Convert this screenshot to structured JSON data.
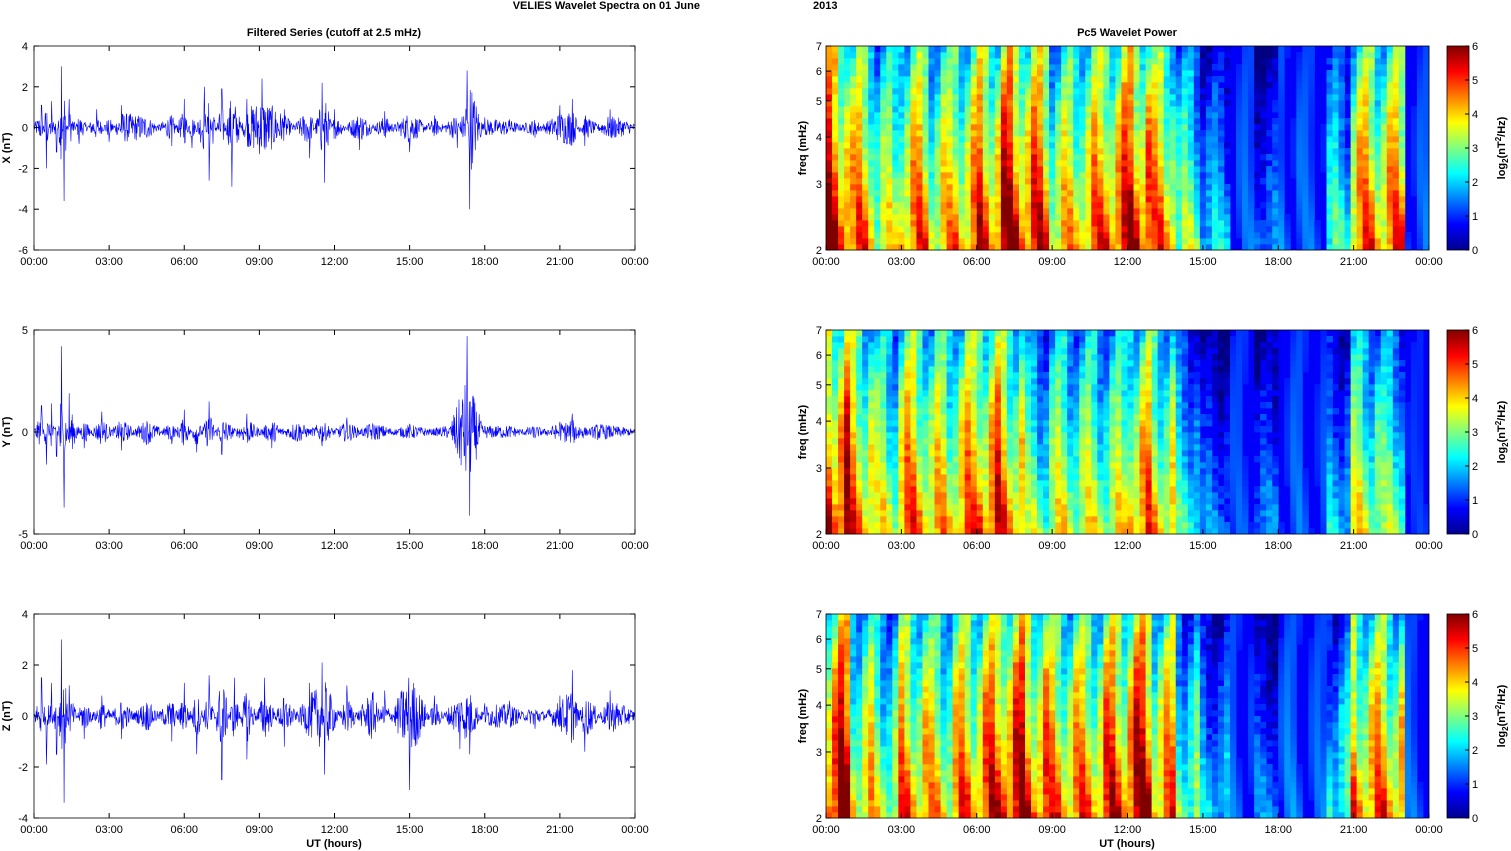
{
  "figure": {
    "suptitle_left": "VELIES Wavelet Spectra on 01 June",
    "suptitle_right": "2013",
    "left_title": "Filtered Series (cutoff at 2.5 mHz)",
    "right_title": "Pc5 Wavelet Power",
    "x_axis_label": "UT (hours)",
    "freq_label": "freq (mHz)",
    "colorbar_label": "log2(nT2/Hz)"
  },
  "colors": {
    "trace": "#0000ff",
    "axis": "#000000"
  },
  "chart_data": [
    {
      "type": "line",
      "panel": "X",
      "title": "Filtered Series (cutoff at 2.5 mHz)",
      "ylabel": "X (nT)",
      "xlabel": "",
      "xlim": [
        "00:00",
        "24:00"
      ],
      "ylim": [
        -6,
        4
      ],
      "xticks": [
        "00:00",
        "03:00",
        "06:00",
        "09:00",
        "12:00",
        "15:00",
        "18:00",
        "21:00",
        "00:00"
      ],
      "yticks": [
        -6,
        -4,
        -2,
        0,
        2,
        4
      ],
      "series": [
        {
          "hours": [
            0,
            0.3,
            0.5,
            0.7,
            0.9,
            1.1,
            1.2,
            1.4,
            1.8,
            2.5,
            3.0,
            3.5,
            4.5,
            5.5,
            6.0,
            6.3,
            6.8,
            7.0,
            7.5,
            7.9,
            8.5,
            9.1,
            10.0,
            11.0,
            11.5,
            11.6,
            12.0,
            13.0,
            14.0,
            15.0,
            16.0,
            16.9,
            17.3,
            17.4,
            18.0,
            19.0,
            20.0,
            21.0,
            21.5,
            22.0,
            23.0,
            24.0
          ],
          "values": [
            0.1,
            1.1,
            -2.0,
            1.3,
            -1.2,
            3.0,
            -3.6,
            1.4,
            -0.8,
            0.9,
            -0.7,
            1.1,
            0.8,
            -0.9,
            1.4,
            -1.0,
            2.0,
            -2.6,
            1.9,
            -2.9,
            1.4,
            2.4,
            0.9,
            -1.5,
            2.2,
            -2.7,
            0.9,
            -1.1,
            0.8,
            -1.2,
            0.6,
            -1.0,
            2.8,
            -4.0,
            0.5,
            0.4,
            -0.5,
            1.1,
            1.4,
            -0.9,
            0.9,
            0.1
          ]
        }
      ]
    },
    {
      "type": "line",
      "panel": "Y",
      "ylabel": "Y (nT)",
      "xlabel": "",
      "xlim": [
        "00:00",
        "24:00"
      ],
      "ylim": [
        -5,
        5
      ],
      "xticks": [
        "00:00",
        "03:00",
        "06:00",
        "09:00",
        "12:00",
        "15:00",
        "18:00",
        "21:00",
        "00:00"
      ],
      "yticks": [
        -5,
        0,
        5
      ],
      "series": [
        {
          "hours": [
            0,
            0.3,
            0.5,
            0.7,
            0.9,
            1.1,
            1.2,
            1.4,
            2.0,
            2.7,
            3.5,
            4.5,
            5.5,
            6.0,
            6.5,
            7.0,
            7.5,
            8.5,
            9.5,
            10.5,
            11.5,
            12.5,
            13.5,
            15.0,
            16.5,
            17.3,
            17.4,
            18.0,
            19.0,
            20.0,
            21.0,
            21.5,
            22.5,
            24.0
          ],
          "values": [
            0.0,
            1.3,
            -1.6,
            1.4,
            -1.2,
            4.2,
            -3.7,
            1.9,
            -0.8,
            1.0,
            -0.9,
            0.9,
            -0.6,
            1.1,
            -1.0,
            1.5,
            -1.1,
            0.9,
            -0.8,
            0.8,
            -0.7,
            0.7,
            -0.6,
            0.4,
            -0.3,
            4.7,
            -4.1,
            0.3,
            0.3,
            -0.3,
            0.5,
            0.9,
            -0.5,
            0.0
          ]
        }
      ]
    },
    {
      "type": "line",
      "panel": "Z",
      "ylabel": "Z (nT)",
      "xlabel": "UT (hours)",
      "xlim": [
        "00:00",
        "24:00"
      ],
      "ylim": [
        -4,
        4
      ],
      "xticks": [
        "00:00",
        "03:00",
        "06:00",
        "09:00",
        "12:00",
        "15:00",
        "18:00",
        "21:00",
        "00:00"
      ],
      "yticks": [
        -4,
        -2,
        0,
        2,
        4
      ],
      "series": [
        {
          "hours": [
            0,
            0.3,
            0.5,
            0.7,
            0.9,
            1.1,
            1.2,
            1.4,
            2.0,
            2.7,
            3.5,
            4.5,
            5.5,
            6.0,
            6.5,
            7.0,
            7.5,
            8.0,
            8.5,
            9.2,
            10.0,
            11.0,
            11.5,
            11.6,
            12.5,
            13.5,
            14.0,
            15.0,
            16.0,
            17.0,
            17.4,
            18.0,
            19.0,
            20.0,
            21.0,
            21.5,
            22.0,
            23.0,
            24.0
          ],
          "values": [
            0.0,
            1.5,
            -1.9,
            1.3,
            -1.5,
            3.0,
            -3.4,
            1.2,
            -0.9,
            0.8,
            -0.9,
            0.9,
            -1.0,
            1.3,
            -1.5,
            1.6,
            -2.5,
            1.5,
            -1.7,
            1.5,
            -1.2,
            1.3,
            2.1,
            -2.3,
            1.2,
            -1.7,
            1.0,
            -2.9,
            0.8,
            -1.3,
            -1.5,
            0.5,
            0.6,
            -0.5,
            0.8,
            1.8,
            -1.4,
            1.0,
            0.1
          ]
        }
      ]
    },
    {
      "type": "heatmap",
      "panel": "X",
      "title": "Pc5 Wavelet Power",
      "ylabel": "freq (mHz)",
      "xlabel": "",
      "y_scale": "log",
      "ylim": [
        2,
        7
      ],
      "yticks": [
        2,
        3,
        4,
        5,
        6,
        7
      ],
      "xticks": [
        "00:00",
        "03:00",
        "06:00",
        "09:00",
        "12:00",
        "15:00",
        "18:00",
        "21:00",
        "00:00"
      ],
      "colorbar": {
        "label": "log2(nT2/Hz)",
        "range": [
          0,
          6
        ],
        "ticks": [
          0,
          1,
          2,
          3,
          4,
          5,
          6
        ],
        "colormap": "jet"
      },
      "hour_bins": [
        0,
        1,
        2,
        3,
        4,
        5,
        6,
        7,
        8,
        9,
        10,
        11,
        12,
        13,
        14,
        15,
        16,
        17,
        18,
        19,
        20,
        21,
        22,
        23
      ],
      "mean_log2_power": [
        5.5,
        4.5,
        3.5,
        4.5,
        4.0,
        4.5,
        5.0,
        5.5,
        5.0,
        4.0,
        4.5,
        5.0,
        5.5,
        4.5,
        3.0,
        2.0,
        1.0,
        1.5,
        1.2,
        1.0,
        2.5,
        4.5,
        4.5,
        1.0
      ]
    },
    {
      "type": "heatmap",
      "panel": "Y",
      "ylabel": "freq (mHz)",
      "xlabel": "",
      "y_scale": "log",
      "ylim": [
        2,
        7
      ],
      "yticks": [
        2,
        3,
        4,
        5,
        6,
        7
      ],
      "xticks": [
        "00:00",
        "03:00",
        "06:00",
        "09:00",
        "12:00",
        "15:00",
        "18:00",
        "21:00",
        "00:00"
      ],
      "colorbar": {
        "label": "log2(nT2/Hz)",
        "range": [
          0,
          6
        ],
        "ticks": [
          0,
          1,
          2,
          3,
          4,
          5,
          6
        ],
        "colormap": "jet"
      },
      "hour_bins": [
        0,
        1,
        2,
        3,
        4,
        5,
        6,
        7,
        8,
        9,
        10,
        11,
        12,
        13,
        14,
        15,
        16,
        17,
        18,
        19,
        20,
        21,
        22,
        23
      ],
      "mean_log2_power": [
        5.5,
        4.5,
        3.5,
        4.5,
        4.0,
        4.5,
        5.0,
        4.5,
        3.0,
        3.5,
        3.5,
        3.5,
        4.5,
        4.0,
        2.5,
        1.5,
        0.8,
        1.5,
        1.0,
        0.8,
        2.0,
        3.5,
        3.0,
        0.5
      ]
    },
    {
      "type": "heatmap",
      "panel": "Z",
      "ylabel": "freq (mHz)",
      "xlabel": "UT (hours)",
      "y_scale": "log",
      "ylim": [
        2,
        7
      ],
      "yticks": [
        2,
        3,
        4,
        5,
        6,
        7
      ],
      "xticks": [
        "00:00",
        "03:00",
        "06:00",
        "09:00",
        "12:00",
        "15:00",
        "18:00",
        "21:00",
        "00:00"
      ],
      "colorbar": {
        "label": "log2(nT2/Hz)",
        "range": [
          0,
          6
        ],
        "ticks": [
          0,
          1,
          2,
          3,
          4,
          5,
          6
        ],
        "colormap": "jet"
      },
      "hour_bins": [
        0,
        1,
        2,
        3,
        4,
        5,
        6,
        7,
        8,
        9,
        10,
        11,
        12,
        13,
        14,
        15,
        16,
        17,
        18,
        19,
        20,
        21,
        22,
        23
      ],
      "mean_log2_power": [
        5.5,
        4.0,
        3.5,
        4.5,
        4.0,
        4.5,
        5.0,
        5.5,
        5.0,
        4.5,
        4.5,
        5.0,
        5.5,
        4.5,
        3.0,
        2.0,
        1.0,
        1.5,
        1.2,
        1.0,
        2.5,
        4.5,
        4.5,
        1.0
      ]
    }
  ]
}
